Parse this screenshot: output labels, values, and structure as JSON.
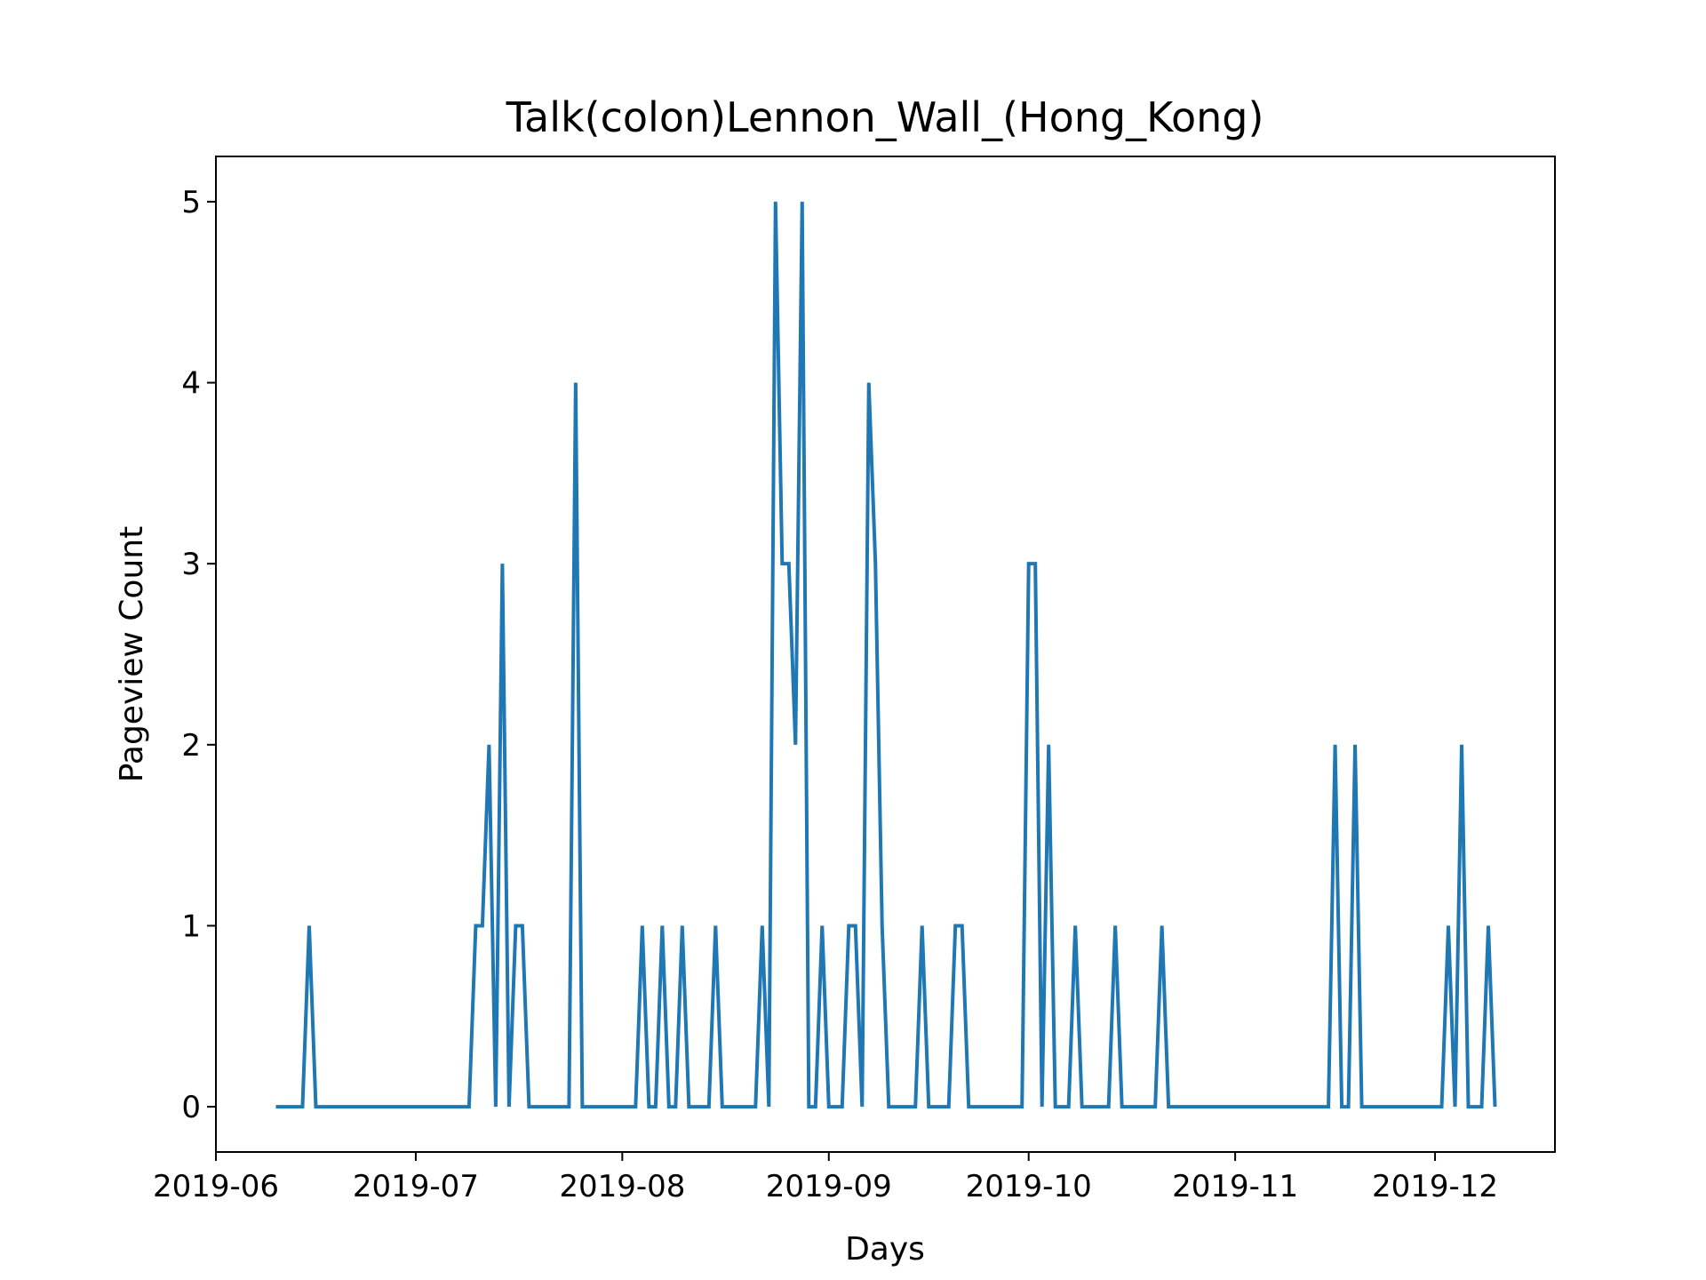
{
  "chart_data": {
    "type": "line",
    "title": "Talk(colon)Lennon_Wall_(Hong_Kong)",
    "xlabel": "Days",
    "ylabel": "Pageview Count",
    "x_tick_labels": [
      "2019-06",
      "2019-07",
      "2019-08",
      "2019-09",
      "2019-10",
      "2019-11",
      "2019-12"
    ],
    "y_tick_labels": [
      "0",
      "1",
      "2",
      "3",
      "4",
      "5"
    ],
    "xlim": [
      "2019-06-01",
      "2019-12-19"
    ],
    "ylim": [
      -0.25,
      5.25
    ],
    "grid": false,
    "legend": "none",
    "line_color": "#1f77b4",
    "series": [
      {
        "points": [
          [
            "2019-06-10",
            0
          ],
          [
            "2019-06-11",
            0
          ],
          [
            "2019-06-12",
            0
          ],
          [
            "2019-06-13",
            0
          ],
          [
            "2019-06-14",
            0
          ],
          [
            "2019-06-15",
            1
          ],
          [
            "2019-06-16",
            0
          ],
          [
            "2019-06-17",
            0
          ],
          [
            "2019-06-18",
            0
          ],
          [
            "2019-06-19",
            0
          ],
          [
            "2019-06-20",
            0
          ],
          [
            "2019-06-21",
            0
          ],
          [
            "2019-06-22",
            0
          ],
          [
            "2019-06-23",
            0
          ],
          [
            "2019-06-24",
            0
          ],
          [
            "2019-06-25",
            0
          ],
          [
            "2019-06-26",
            0
          ],
          [
            "2019-06-27",
            0
          ],
          [
            "2019-06-28",
            0
          ],
          [
            "2019-06-29",
            0
          ],
          [
            "2019-06-30",
            0
          ],
          [
            "2019-07-01",
            0
          ],
          [
            "2019-07-02",
            0
          ],
          [
            "2019-07-03",
            0
          ],
          [
            "2019-07-04",
            0
          ],
          [
            "2019-07-05",
            0
          ],
          [
            "2019-07-06",
            0
          ],
          [
            "2019-07-07",
            0
          ],
          [
            "2019-07-08",
            0
          ],
          [
            "2019-07-09",
            0
          ],
          [
            "2019-07-10",
            1
          ],
          [
            "2019-07-11",
            1
          ],
          [
            "2019-07-12",
            2
          ],
          [
            "2019-07-13",
            0
          ],
          [
            "2019-07-14",
            3
          ],
          [
            "2019-07-15",
            0
          ],
          [
            "2019-07-16",
            1
          ],
          [
            "2019-07-17",
            1
          ],
          [
            "2019-07-18",
            0
          ],
          [
            "2019-07-19",
            0
          ],
          [
            "2019-07-20",
            0
          ],
          [
            "2019-07-21",
            0
          ],
          [
            "2019-07-22",
            0
          ],
          [
            "2019-07-23",
            0
          ],
          [
            "2019-07-24",
            0
          ],
          [
            "2019-07-25",
            4
          ],
          [
            "2019-07-26",
            0
          ],
          [
            "2019-07-27",
            0
          ],
          [
            "2019-07-28",
            0
          ],
          [
            "2019-07-29",
            0
          ],
          [
            "2019-07-30",
            0
          ],
          [
            "2019-07-31",
            0
          ],
          [
            "2019-08-01",
            0
          ],
          [
            "2019-08-02",
            0
          ],
          [
            "2019-08-03",
            0
          ],
          [
            "2019-08-04",
            1
          ],
          [
            "2019-08-05",
            0
          ],
          [
            "2019-08-06",
            0
          ],
          [
            "2019-08-07",
            1
          ],
          [
            "2019-08-08",
            0
          ],
          [
            "2019-08-09",
            0
          ],
          [
            "2019-08-10",
            1
          ],
          [
            "2019-08-11",
            0
          ],
          [
            "2019-08-12",
            0
          ],
          [
            "2019-08-13",
            0
          ],
          [
            "2019-08-14",
            0
          ],
          [
            "2019-08-15",
            1
          ],
          [
            "2019-08-16",
            0
          ],
          [
            "2019-08-17",
            0
          ],
          [
            "2019-08-18",
            0
          ],
          [
            "2019-08-19",
            0
          ],
          [
            "2019-08-20",
            0
          ],
          [
            "2019-08-21",
            0
          ],
          [
            "2019-08-22",
            1
          ],
          [
            "2019-08-23",
            0
          ],
          [
            "2019-08-24",
            5
          ],
          [
            "2019-08-25",
            3
          ],
          [
            "2019-08-26",
            3
          ],
          [
            "2019-08-27",
            2
          ],
          [
            "2019-08-28",
            5
          ],
          [
            "2019-08-29",
            0
          ],
          [
            "2019-08-30",
            0
          ],
          [
            "2019-08-31",
            1
          ],
          [
            "2019-09-01",
            0
          ],
          [
            "2019-09-02",
            0
          ],
          [
            "2019-09-03",
            0
          ],
          [
            "2019-09-04",
            1
          ],
          [
            "2019-09-05",
            1
          ],
          [
            "2019-09-06",
            0
          ],
          [
            "2019-09-07",
            4
          ],
          [
            "2019-09-08",
            3
          ],
          [
            "2019-09-09",
            1
          ],
          [
            "2019-09-10",
            0
          ],
          [
            "2019-09-11",
            0
          ],
          [
            "2019-09-12",
            0
          ],
          [
            "2019-09-13",
            0
          ],
          [
            "2019-09-14",
            0
          ],
          [
            "2019-09-15",
            1
          ],
          [
            "2019-09-16",
            0
          ],
          [
            "2019-09-17",
            0
          ],
          [
            "2019-09-18",
            0
          ],
          [
            "2019-09-19",
            0
          ],
          [
            "2019-09-20",
            1
          ],
          [
            "2019-09-21",
            1
          ],
          [
            "2019-09-22",
            0
          ],
          [
            "2019-09-23",
            0
          ],
          [
            "2019-09-24",
            0
          ],
          [
            "2019-09-25",
            0
          ],
          [
            "2019-09-26",
            0
          ],
          [
            "2019-09-27",
            0
          ],
          [
            "2019-09-28",
            0
          ],
          [
            "2019-09-29",
            0
          ],
          [
            "2019-09-30",
            0
          ],
          [
            "2019-10-01",
            3
          ],
          [
            "2019-10-02",
            3
          ],
          [
            "2019-10-03",
            0
          ],
          [
            "2019-10-04",
            2
          ],
          [
            "2019-10-05",
            0
          ],
          [
            "2019-10-06",
            0
          ],
          [
            "2019-10-07",
            0
          ],
          [
            "2019-10-08",
            1
          ],
          [
            "2019-10-09",
            0
          ],
          [
            "2019-10-10",
            0
          ],
          [
            "2019-10-11",
            0
          ],
          [
            "2019-10-12",
            0
          ],
          [
            "2019-10-13",
            0
          ],
          [
            "2019-10-14",
            1
          ],
          [
            "2019-10-15",
            0
          ],
          [
            "2019-10-16",
            0
          ],
          [
            "2019-10-17",
            0
          ],
          [
            "2019-10-18",
            0
          ],
          [
            "2019-10-19",
            0
          ],
          [
            "2019-10-20",
            0
          ],
          [
            "2019-10-21",
            1
          ],
          [
            "2019-10-22",
            0
          ],
          [
            "2019-10-23",
            0
          ],
          [
            "2019-10-24",
            0
          ],
          [
            "2019-10-25",
            0
          ],
          [
            "2019-10-26",
            0
          ],
          [
            "2019-10-27",
            0
          ],
          [
            "2019-10-28",
            0
          ],
          [
            "2019-10-29",
            0
          ],
          [
            "2019-10-30",
            0
          ],
          [
            "2019-10-31",
            0
          ],
          [
            "2019-11-01",
            0
          ],
          [
            "2019-11-02",
            0
          ],
          [
            "2019-11-03",
            0
          ],
          [
            "2019-11-04",
            0
          ],
          [
            "2019-11-05",
            0
          ],
          [
            "2019-11-06",
            0
          ],
          [
            "2019-11-07",
            0
          ],
          [
            "2019-11-08",
            0
          ],
          [
            "2019-11-09",
            0
          ],
          [
            "2019-11-10",
            0
          ],
          [
            "2019-11-11",
            0
          ],
          [
            "2019-11-12",
            0
          ],
          [
            "2019-11-13",
            0
          ],
          [
            "2019-11-14",
            0
          ],
          [
            "2019-11-15",
            0
          ],
          [
            "2019-11-16",
            2
          ],
          [
            "2019-11-17",
            0
          ],
          [
            "2019-11-18",
            0
          ],
          [
            "2019-11-19",
            2
          ],
          [
            "2019-11-20",
            0
          ],
          [
            "2019-11-21",
            0
          ],
          [
            "2019-11-22",
            0
          ],
          [
            "2019-11-23",
            0
          ],
          [
            "2019-11-24",
            0
          ],
          [
            "2019-11-25",
            0
          ],
          [
            "2019-11-26",
            0
          ],
          [
            "2019-11-27",
            0
          ],
          [
            "2019-11-28",
            0
          ],
          [
            "2019-11-29",
            0
          ],
          [
            "2019-11-30",
            0
          ],
          [
            "2019-12-01",
            0
          ],
          [
            "2019-12-02",
            0
          ],
          [
            "2019-12-03",
            1
          ],
          [
            "2019-12-04",
            0
          ],
          [
            "2019-12-05",
            2
          ],
          [
            "2019-12-06",
            0
          ],
          [
            "2019-12-07",
            0
          ],
          [
            "2019-12-08",
            0
          ],
          [
            "2019-12-09",
            1
          ],
          [
            "2019-12-10",
            0
          ]
        ]
      }
    ]
  }
}
